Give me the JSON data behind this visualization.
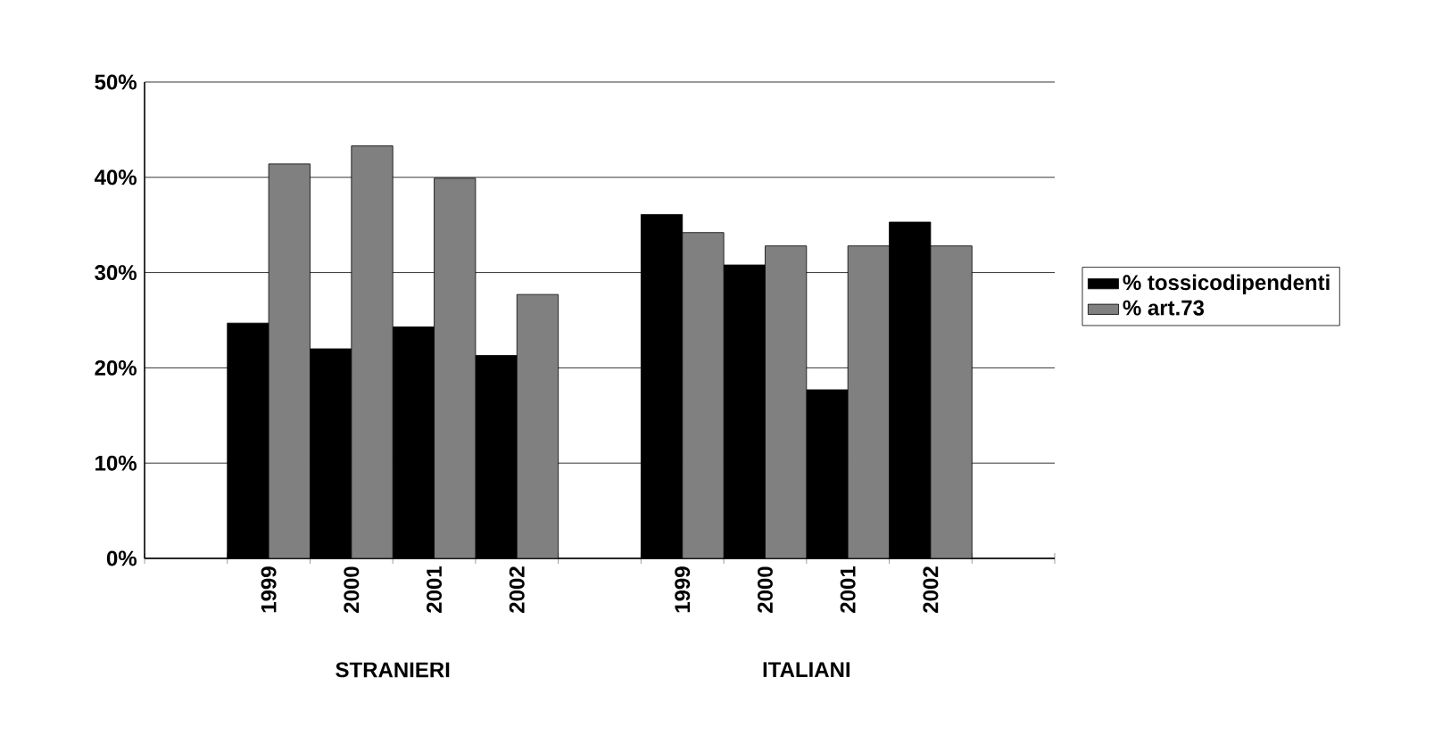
{
  "chart_data": {
    "type": "bar",
    "categories": [
      null,
      "1999",
      "2000",
      "2001",
      "2002",
      null,
      "1999",
      "2000",
      "2001",
      "2002",
      null
    ],
    "series": [
      {
        "name": "% tossicodipendenti",
        "color": "#000000",
        "values": [
          null,
          24.7,
          22.0,
          24.3,
          21.3,
          null,
          36.1,
          30.8,
          17.7,
          35.3,
          null
        ]
      },
      {
        "name": "% art.73",
        "color": "#808080",
        "values": [
          null,
          41.4,
          43.3,
          39.9,
          27.7,
          null,
          34.2,
          32.8,
          32.8,
          32.8,
          null
        ]
      }
    ],
    "ylim": [
      0,
      50
    ],
    "yticks": [
      {
        "value": 0,
        "label": "0%"
      },
      {
        "value": 10,
        "label": "10%"
      },
      {
        "value": 20,
        "label": "20%"
      },
      {
        "value": 30,
        "label": "30%"
      },
      {
        "value": 40,
        "label": "40%"
      },
      {
        "value": 50,
        "label": "50%"
      }
    ],
    "annotations": [
      "STRANIERI",
      "ITALIANI"
    ],
    "grid": "y",
    "legend": "right"
  }
}
